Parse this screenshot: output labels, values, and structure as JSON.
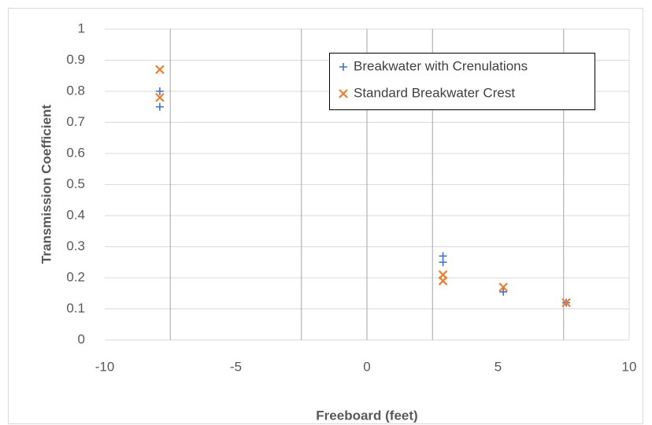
{
  "chart_data": {
    "type": "scatter",
    "x_label": "Freeboard (feet)",
    "y_label": "Transmission Coefficient",
    "xlim": [
      -10,
      10
    ],
    "xticks": [
      -10,
      -5,
      0,
      5,
      10
    ],
    "xgrid": [
      -7.5,
      -2.5,
      0,
      2.5,
      7.5
    ],
    "ylim": [
      0,
      1
    ],
    "yticks": [
      0,
      0.1,
      0.2,
      0.3,
      0.4,
      0.5,
      0.6,
      0.7,
      0.8,
      0.9,
      1
    ],
    "grid": true,
    "legend": "top-right",
    "series": [
      {
        "name": "Breakwater with Crenulations",
        "color": "#4472c4",
        "marker": "plus",
        "x": [
          -7.9,
          -7.9,
          2.9,
          2.9,
          5.2,
          7.6
        ],
        "values": [
          0.8,
          0.75,
          0.27,
          0.25,
          0.155,
          0.12
        ]
      },
      {
        "name": "Standard Breakwater Crest",
        "color": "#ed7d31",
        "marker": "cross",
        "x": [
          -7.9,
          -7.9,
          2.9,
          2.9,
          5.2,
          7.6
        ],
        "values": [
          0.87,
          0.78,
          0.21,
          0.19,
          0.17,
          0.12
        ]
      }
    ]
  }
}
